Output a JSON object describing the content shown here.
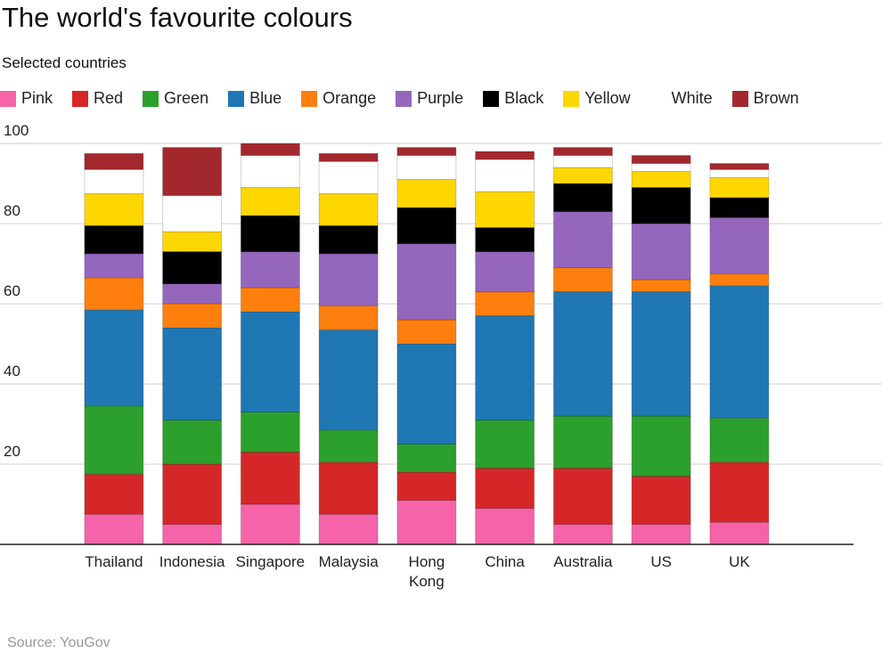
{
  "chart_data": {
    "type": "stacked-bar",
    "title": "The world's favourite colours",
    "subtitle": "Selected countries",
    "source": "Source: YouGov",
    "categories": [
      "Thailand",
      "Indonesia",
      "Singapore",
      "Malaysia",
      "Hong Kong",
      "China",
      "Australia",
      "US",
      "UK"
    ],
    "series": [
      {
        "name": "Pink",
        "color": "#f564a9",
        "values": [
          7.5,
          5,
          10,
          7.5,
          11,
          9,
          5,
          5,
          5.5
        ]
      },
      {
        "name": "Red",
        "color": "#d62728",
        "values": [
          10,
          15,
          13,
          13,
          7,
          10,
          14,
          12,
          15
        ]
      },
      {
        "name": "Green",
        "color": "#2ca02c",
        "values": [
          17,
          11,
          10,
          8,
          7,
          12,
          13,
          15,
          11
        ]
      },
      {
        "name": "Blue",
        "color": "#1f77b4",
        "values": [
          24,
          23,
          25,
          25,
          25,
          26,
          31,
          31,
          33
        ]
      },
      {
        "name": "Orange",
        "color": "#ff7f0e",
        "values": [
          8,
          6,
          6,
          6,
          6,
          6,
          6,
          3,
          3
        ]
      },
      {
        "name": "Purple",
        "color": "#9467bd",
        "values": [
          6,
          5,
          9,
          13,
          19,
          10,
          14,
          14,
          14
        ]
      },
      {
        "name": "Black",
        "color": "#000000",
        "values": [
          7,
          8,
          9,
          7,
          9,
          6,
          7,
          9,
          5
        ]
      },
      {
        "name": "Yellow",
        "color": "#ffd700",
        "values": [
          8,
          5,
          7,
          8,
          7,
          9,
          4,
          4,
          5
        ]
      },
      {
        "name": "White",
        "color": "#ffffff",
        "values": [
          6,
          9,
          8,
          8,
          6,
          8,
          3,
          2,
          2
        ]
      },
      {
        "name": "Brown",
        "color": "#a3282d",
        "values": [
          4,
          12,
          3,
          2,
          2,
          2,
          2,
          2,
          1.5
        ]
      }
    ],
    "ylim": [
      0,
      100
    ],
    "yticks": [
      20,
      40,
      60,
      80,
      100
    ],
    "grid": true
  }
}
